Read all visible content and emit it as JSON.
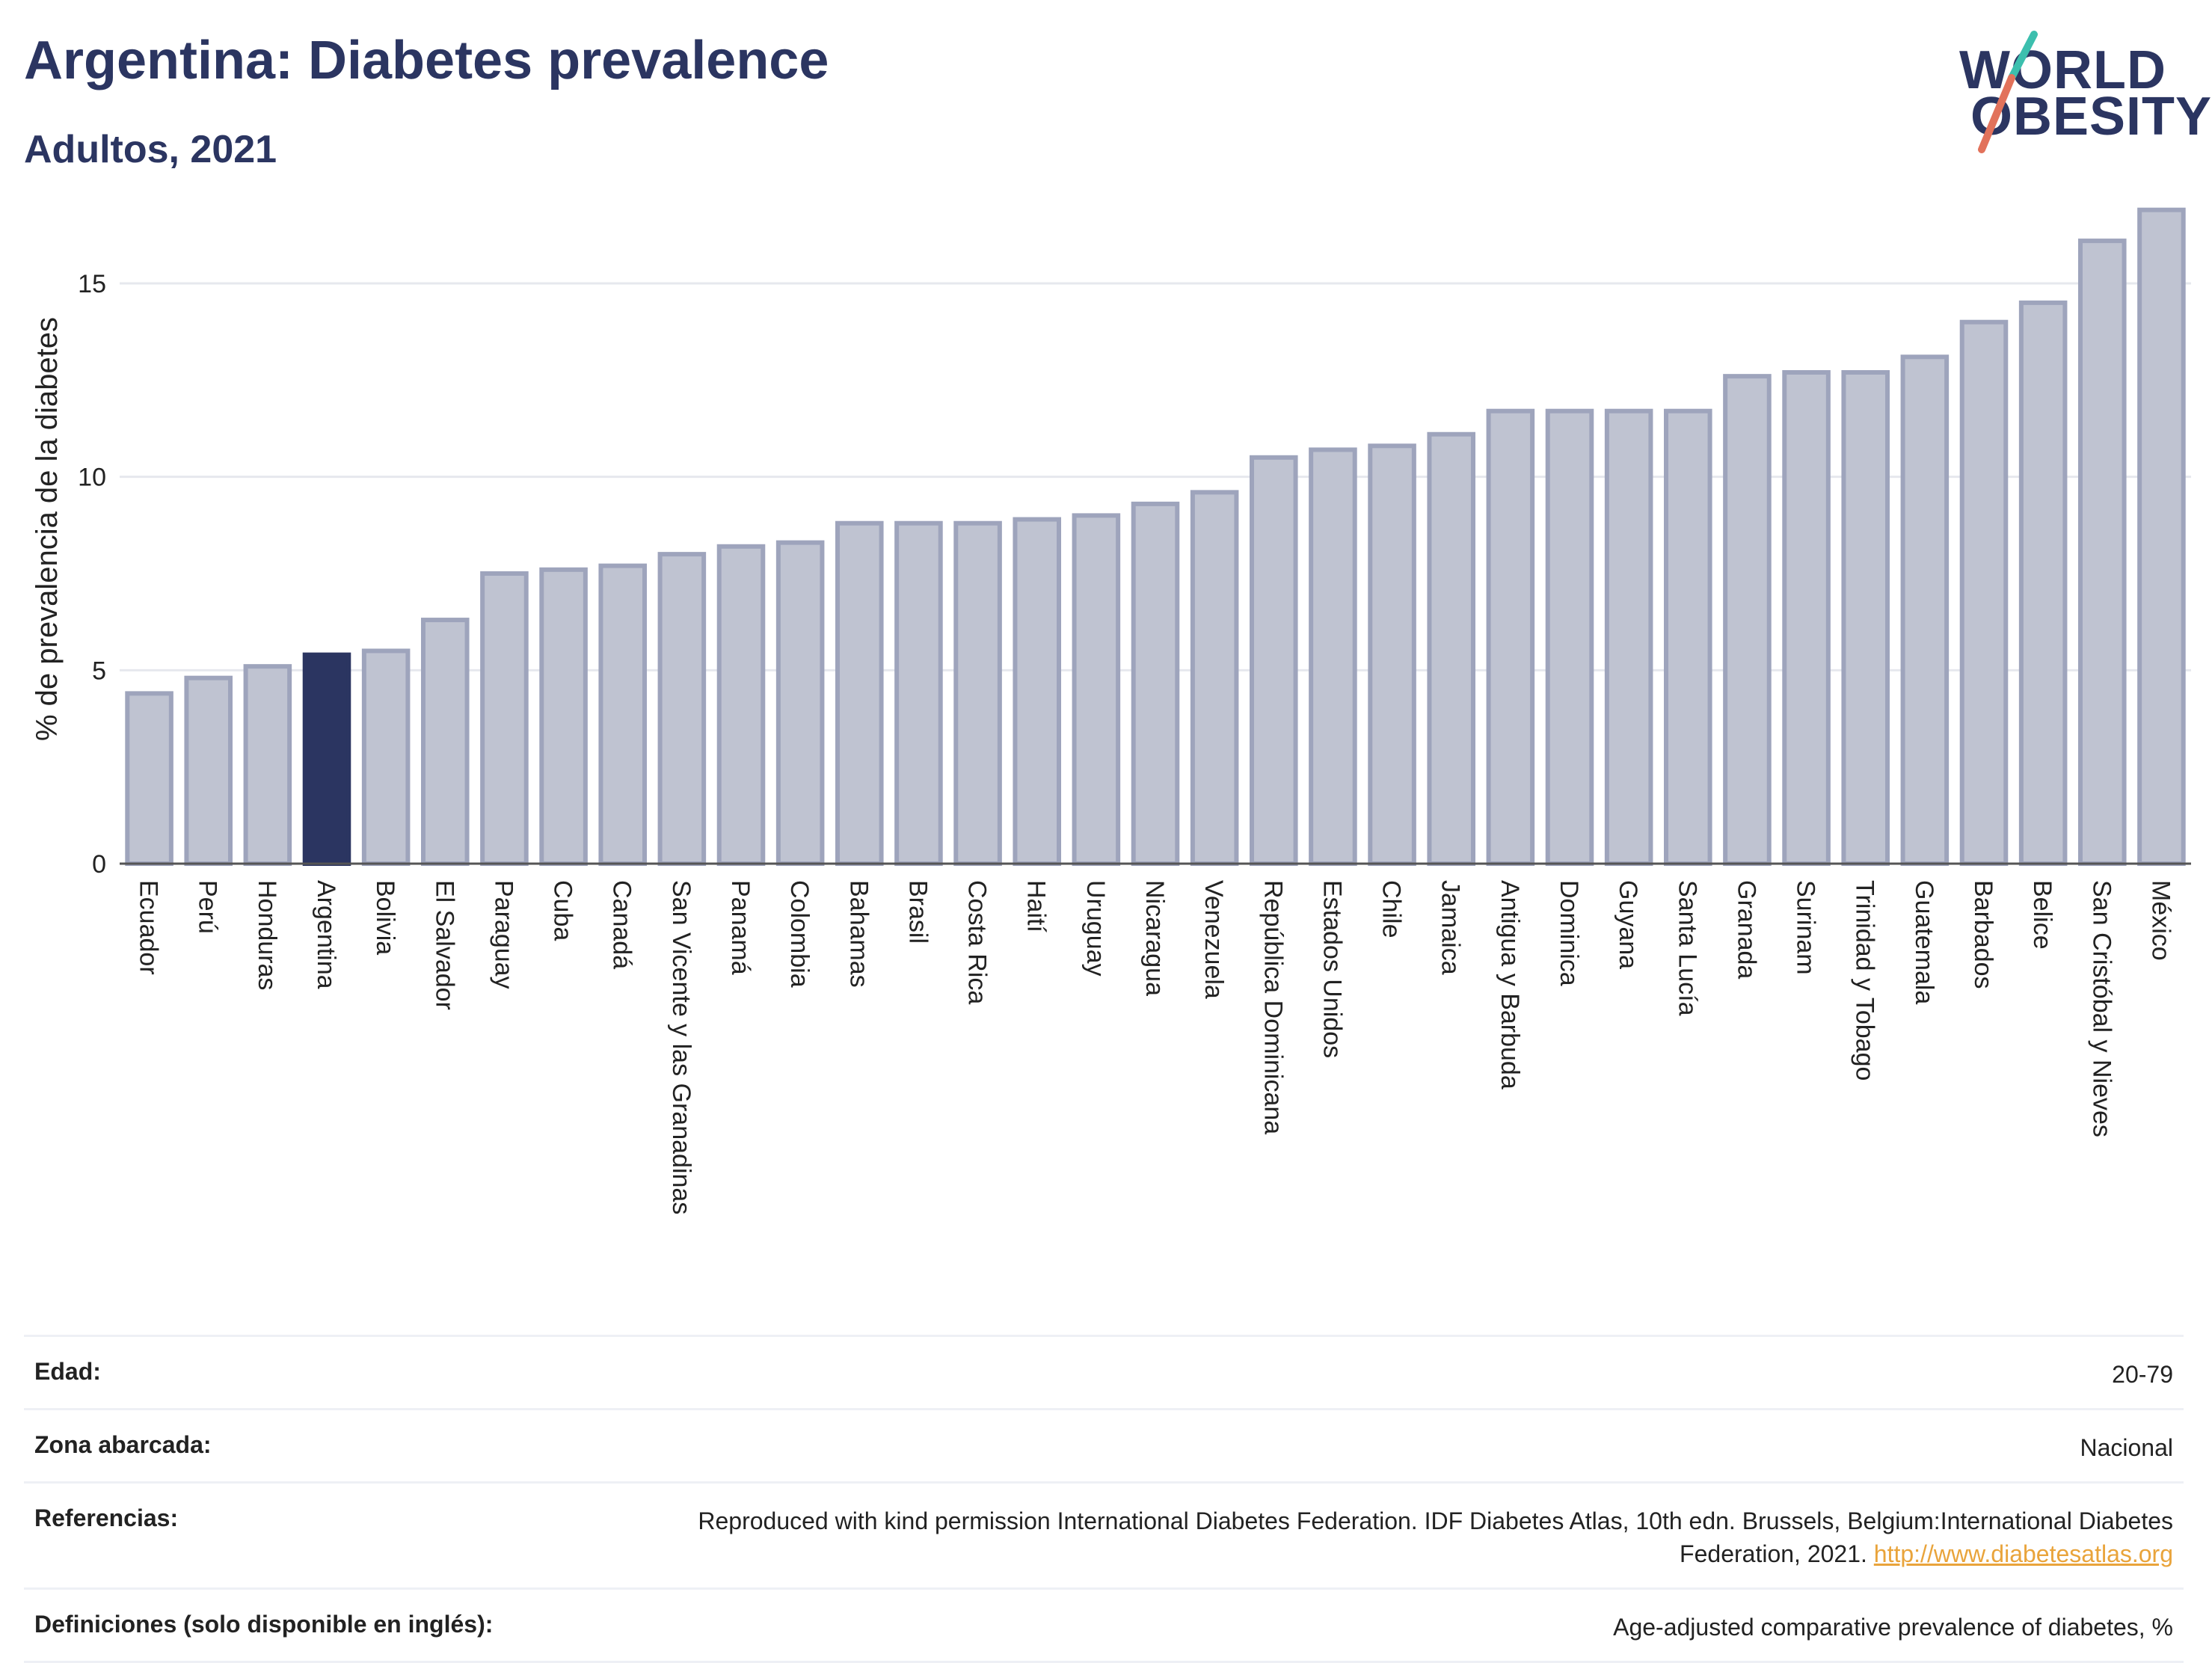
{
  "header": {
    "title": "Argentina: Diabetes prevalence",
    "subtitle": "Adultos, 2021"
  },
  "logo": {
    "line1": "WORLD",
    "line2": "OBESITY",
    "colors": [
      "#2b3561",
      "#e2725b",
      "#3cbfae"
    ]
  },
  "colors": {
    "highlight": "#2b3561",
    "bar": "#bfc3d1",
    "bar_edge": "#9ea4bc",
    "link": "#e9a43b",
    "grid": "#e6e8ee"
  },
  "chart_data": {
    "type": "bar",
    "ylabel": "% de prevalencia de la diabetes",
    "xlabel": "",
    "ylim": [
      0,
      17.3
    ],
    "yticks": [
      0,
      5,
      10,
      15
    ],
    "grid": true,
    "highlight": "Argentina",
    "categories": [
      "Ecuador",
      "Perú",
      "Honduras",
      "Argentina",
      "Bolivia",
      "El Salvador",
      "Paraguay",
      "Cuba",
      "Canadá",
      "San Vicente y las Granadinas",
      "Panamá",
      "Colombia",
      "Bahamas",
      "Brasil",
      "Costa Rica",
      "Haití",
      "Uruguay",
      "Nicaragua",
      "Venezuela",
      "República Dominicana",
      "Estados Unidos",
      "Chile",
      "Jamaica",
      "Antigua y Barbuda",
      "Dominica",
      "Guyana",
      "Santa Lucía",
      "Granada",
      "Surinam",
      "Trinidad y Tobago",
      "Guatemala",
      "Barbados",
      "Belice",
      "San Cristóbal y Nieves",
      "México"
    ],
    "values": [
      4.4,
      4.8,
      5.1,
      5.4,
      5.5,
      6.3,
      7.5,
      7.6,
      7.7,
      8.0,
      8.2,
      8.3,
      8.8,
      8.8,
      8.8,
      8.9,
      9.0,
      9.3,
      9.6,
      10.5,
      10.7,
      10.8,
      11.1,
      11.7,
      11.7,
      11.7,
      11.7,
      12.6,
      12.7,
      12.7,
      13.1,
      14.0,
      14.5,
      16.1,
      16.9
    ]
  },
  "metadata": [
    {
      "key": "Edad:",
      "value": "20-79"
    },
    {
      "key": "Zona abarcada:",
      "value": "Nacional"
    },
    {
      "key": "Referencias:",
      "value": "Reproduced with kind permission International Diabetes Federation.  IDF Diabetes Atlas, 10th edn. Brussels, Belgium:International Diabetes Federation, 2021. ",
      "link": "http://www.diabetesatlas.org"
    },
    {
      "key": "Definiciones (solo disponible en inglés):",
      "value": "Age-adjusted comparative prevalence of diabetes, %"
    }
  ]
}
